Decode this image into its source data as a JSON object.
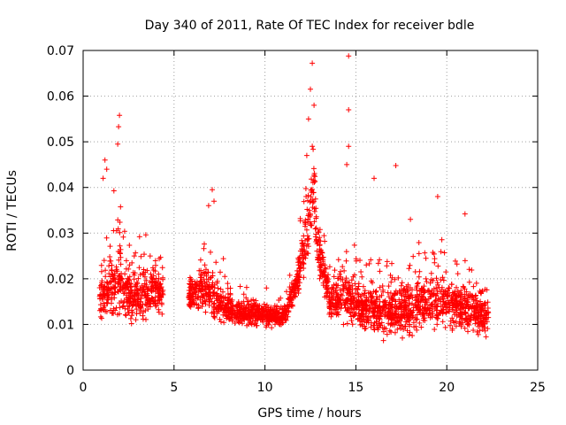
{
  "chart_data": {
    "type": "scatter",
    "title": "Day 340 of 2011, Rate Of TEC Index for receiver bdle",
    "xlabel": "GPS time / hours",
    "ylabel": "ROTI / TECUs",
    "xlim": [
      0,
      25
    ],
    "ylim": [
      0,
      0.07
    ],
    "x_ticks": [
      "0",
      "5",
      "10",
      "15",
      "20",
      "25"
    ],
    "y_ticks": [
      "0",
      "0.01",
      "0.02",
      "0.03",
      "0.04",
      "0.05",
      "0.06",
      "0.07"
    ],
    "grid": true,
    "legend": "none",
    "marker": "plus",
    "color": "#ff0000",
    "series": [
      {
        "segments": [
          {
            "x_start": 0.9,
            "x_end": 4.4,
            "profile": [
              [
                0.9,
                0.016,
                0.008
              ],
              [
                1.5,
                0.018,
                0.01
              ],
              [
                2.0,
                0.02,
                0.01
              ],
              [
                2.7,
                0.015,
                0.006
              ],
              [
                3.3,
                0.016,
                0.007
              ],
              [
                4.0,
                0.018,
                0.007
              ],
              [
                4.4,
                0.016,
                0.005
              ]
            ]
          },
          {
            "x_start": 5.8,
            "x_end": 8.2,
            "profile": [
              [
                5.8,
                0.016,
                0.005
              ],
              [
                6.5,
                0.018,
                0.006
              ],
              [
                7.0,
                0.017,
                0.007
              ],
              [
                7.6,
                0.014,
                0.005
              ],
              [
                8.2,
                0.013,
                0.004
              ]
            ]
          },
          {
            "x_start": 8.2,
            "x_end": 11.3,
            "profile": [
              [
                8.2,
                0.012,
                0.004
              ],
              [
                9.0,
                0.013,
                0.004
              ],
              [
                10.0,
                0.012,
                0.003
              ],
              [
                11.0,
                0.012,
                0.003
              ],
              [
                11.3,
                0.013,
                0.003
              ]
            ]
          },
          {
            "x_start": 11.3,
            "x_end": 13.5,
            "profile": [
              [
                11.3,
                0.015,
                0.004
              ],
              [
                11.8,
                0.02,
                0.005
              ],
              [
                12.3,
                0.03,
                0.01
              ],
              [
                12.6,
                0.04,
                0.012
              ],
              [
                13.0,
                0.025,
                0.008
              ],
              [
                13.5,
                0.017,
                0.006
              ]
            ]
          },
          {
            "x_start": 13.5,
            "x_end": 22.3,
            "profile": [
              [
                13.5,
                0.015,
                0.006
              ],
              [
                14.5,
                0.016,
                0.008
              ],
              [
                15.5,
                0.013,
                0.006
              ],
              [
                16.5,
                0.013,
                0.007
              ],
              [
                17.5,
                0.013,
                0.007
              ],
              [
                18.5,
                0.014,
                0.007
              ],
              [
                19.5,
                0.016,
                0.008
              ],
              [
                20.5,
                0.014,
                0.007
              ],
              [
                21.5,
                0.013,
                0.007
              ],
              [
                22.3,
                0.011,
                0.005
              ]
            ]
          }
        ],
        "outliers": [
          [
            2.0,
            0.0558
          ],
          [
            1.95,
            0.0533
          ],
          [
            1.9,
            0.0495
          ],
          [
            1.2,
            0.046
          ],
          [
            1.3,
            0.044
          ],
          [
            1.1,
            0.042
          ],
          [
            7.1,
            0.0395
          ],
          [
            7.2,
            0.037
          ],
          [
            6.9,
            0.036
          ],
          [
            12.6,
            0.0672
          ],
          [
            12.5,
            0.0615
          ],
          [
            12.7,
            0.058
          ],
          [
            12.4,
            0.055
          ],
          [
            12.6,
            0.049
          ],
          [
            12.3,
            0.047
          ],
          [
            14.6,
            0.0688
          ],
          [
            14.6,
            0.057
          ],
          [
            14.6,
            0.049
          ],
          [
            14.5,
            0.045
          ],
          [
            16.0,
            0.042
          ],
          [
            17.2,
            0.0448
          ],
          [
            21.0,
            0.0342
          ],
          [
            19.5,
            0.038
          ],
          [
            18.0,
            0.033
          ]
        ],
        "baseline_count": 2600
      }
    ]
  }
}
